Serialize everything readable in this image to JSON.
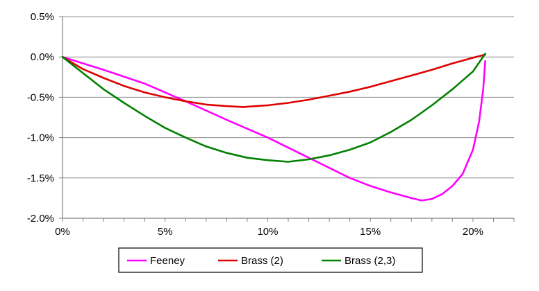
{
  "chart_data": {
    "type": "line",
    "title": "",
    "xlabel": "",
    "ylabel": "",
    "xlim": [
      0,
      22
    ],
    "ylim": [
      -2.0,
      0.5
    ],
    "x_ticks": [
      0,
      5,
      10,
      15,
      20
    ],
    "x_tick_labels": [
      "0%",
      "5%",
      "10%",
      "15%",
      "20%"
    ],
    "y_ticks": [
      0.5,
      0.0,
      -0.5,
      -1.0,
      -1.5,
      -2.0
    ],
    "y_tick_labels": [
      "0.5%",
      "0.0%",
      "-0.5%",
      "-1.0%",
      "-1.5%",
      "-2.0%"
    ],
    "grid": "horizontal",
    "legend_position": "bottom",
    "series": [
      {
        "name": "Feeney",
        "color": "#ff00ff",
        "points": [
          [
            0,
            0.0
          ],
          [
            2,
            -0.16
          ],
          [
            4,
            -0.33
          ],
          [
            6,
            -0.55
          ],
          [
            8,
            -0.78
          ],
          [
            10,
            -1.0
          ],
          [
            12,
            -1.25
          ],
          [
            14,
            -1.5
          ],
          [
            15,
            -1.6
          ],
          [
            16,
            -1.68
          ],
          [
            17,
            -1.75
          ],
          [
            17.5,
            -1.78
          ],
          [
            18,
            -1.76
          ],
          [
            18.5,
            -1.7
          ],
          [
            19,
            -1.6
          ],
          [
            19.5,
            -1.45
          ],
          [
            20,
            -1.15
          ],
          [
            20.3,
            -0.8
          ],
          [
            20.5,
            -0.4
          ],
          [
            20.6,
            -0.05
          ]
        ]
      },
      {
        "name": "Brass (2)",
        "color": "#e00000",
        "points": [
          [
            0,
            0.0
          ],
          [
            1,
            -0.15
          ],
          [
            2,
            -0.26
          ],
          [
            3,
            -0.36
          ],
          [
            4,
            -0.44
          ],
          [
            5,
            -0.5
          ],
          [
            6,
            -0.55
          ],
          [
            7,
            -0.59
          ],
          [
            8,
            -0.61
          ],
          [
            8.8,
            -0.62
          ],
          [
            10,
            -0.6
          ],
          [
            11,
            -0.57
          ],
          [
            12,
            -0.53
          ],
          [
            13,
            -0.48
          ],
          [
            14,
            -0.43
          ],
          [
            15,
            -0.37
          ],
          [
            16,
            -0.3
          ],
          [
            17,
            -0.23
          ],
          [
            18,
            -0.16
          ],
          [
            19,
            -0.08
          ],
          [
            20,
            -0.01
          ],
          [
            20.6,
            0.03
          ]
        ]
      },
      {
        "name": "Brass (2,3)",
        "color": "#008000",
        "points": [
          [
            0,
            0.0
          ],
          [
            1,
            -0.2
          ],
          [
            2,
            -0.4
          ],
          [
            3,
            -0.57
          ],
          [
            4,
            -0.73
          ],
          [
            5,
            -0.88
          ],
          [
            6,
            -1.0
          ],
          [
            7,
            -1.11
          ],
          [
            8,
            -1.19
          ],
          [
            9,
            -1.25
          ],
          [
            10,
            -1.28
          ],
          [
            11,
            -1.3
          ],
          [
            12,
            -1.27
          ],
          [
            13,
            -1.22
          ],
          [
            14,
            -1.15
          ],
          [
            15,
            -1.06
          ],
          [
            16,
            -0.93
          ],
          [
            17,
            -0.78
          ],
          [
            18,
            -0.6
          ],
          [
            19,
            -0.4
          ],
          [
            20,
            -0.18
          ],
          [
            20.6,
            0.04
          ]
        ]
      }
    ]
  }
}
